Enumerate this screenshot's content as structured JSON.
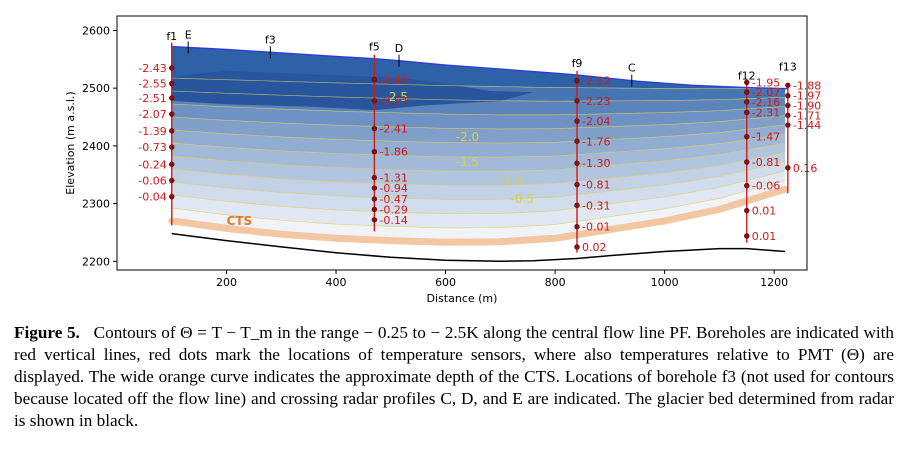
{
  "chart_data": {
    "type": "contour",
    "xlabel": "Distance (m)",
    "ylabel": "Elevation (m a.s.l.)",
    "xlim": [
      0,
      1260
    ],
    "ylim": [
      2185,
      2625
    ],
    "xticks": [
      200,
      400,
      600,
      800,
      1000,
      1200
    ],
    "yticks": [
      2200,
      2300,
      2400,
      2500,
      2600
    ],
    "surface": [
      [
        100,
        2572
      ],
      [
        200,
        2567
      ],
      [
        300,
        2561
      ],
      [
        400,
        2555
      ],
      [
        470,
        2551
      ],
      [
        520,
        2547
      ],
      [
        600,
        2540
      ],
      [
        700,
        2533
      ],
      [
        800,
        2526
      ],
      [
        840,
        2523
      ],
      [
        950,
        2512
      ],
      [
        1050,
        2505
      ],
      [
        1150,
        2501
      ],
      [
        1225,
        2499
      ]
    ],
    "bed": [
      [
        100,
        2248
      ],
      [
        200,
        2236
      ],
      [
        300,
        2225
      ],
      [
        400,
        2215
      ],
      [
        500,
        2207
      ],
      [
        600,
        2202
      ],
      [
        700,
        2200
      ],
      [
        760,
        2201
      ],
      [
        840,
        2205
      ],
      [
        900,
        2210
      ],
      [
        1000,
        2217
      ],
      [
        1100,
        2222
      ],
      [
        1150,
        2222
      ],
      [
        1220,
        2217
      ]
    ],
    "cts": [
      [
        100,
        2270
      ],
      [
        200,
        2257
      ],
      [
        300,
        2247
      ],
      [
        400,
        2240
      ],
      [
        500,
        2236
      ],
      [
        600,
        2233
      ],
      [
        700,
        2234
      ],
      [
        800,
        2240
      ],
      [
        900,
        2255
      ],
      [
        1000,
        2270
      ],
      [
        1100,
        2290
      ],
      [
        1220,
        2325
      ]
    ],
    "ice_top": [
      [
        100,
        2540
      ],
      [
        300,
        2536
      ],
      [
        470,
        2532
      ],
      [
        700,
        2527
      ],
      [
        840,
        2524
      ],
      [
        1100,
        2518
      ],
      [
        1225,
        2516
      ]
    ],
    "contour_labels": [
      {
        "value": "-2.5",
        "x": 510,
        "y": 2485
      },
      {
        "value": "-2.0",
        "x": 640,
        "y": 2415
      },
      {
        "value": "-1.5",
        "x": 640,
        "y": 2372
      },
      {
        "value": "-1.0",
        "x": 720,
        "y": 2340
      },
      {
        "value": "-0.5",
        "x": 740,
        "y": 2308
      }
    ],
    "cts_label": "CTS",
    "boreholes": [
      {
        "name": "f1",
        "x": 100,
        "top": 2572,
        "bottom": 2262,
        "sensors": [
          {
            "y": 2535,
            "t": "-2.43"
          },
          {
            "y": 2508,
            "t": "-2.55"
          },
          {
            "y": 2483,
            "t": "-2.51"
          },
          {
            "y": 2455,
            "t": "-2.07"
          },
          {
            "y": 2426,
            "t": "-1.39"
          },
          {
            "y": 2398,
            "t": "-0.73"
          },
          {
            "y": 2368,
            "t": "-0.24"
          },
          {
            "y": 2340,
            "t": "-0.06"
          },
          {
            "y": 2312,
            "t": "-0.04"
          }
        ]
      },
      {
        "name": "f5",
        "x": 470,
        "top": 2551,
        "bottom": 2252,
        "sensors": [
          {
            "y": 2515,
            "t": "-2.43"
          },
          {
            "y": 2478,
            "t": "-2.57"
          },
          {
            "y": 2430,
            "t": "-2.41"
          },
          {
            "y": 2390,
            "t": "-1.86"
          },
          {
            "y": 2345,
            "t": "-1.31"
          },
          {
            "y": 2327,
            "t": "-0.94"
          },
          {
            "y": 2308,
            "t": "-0.47"
          },
          {
            "y": 2290,
            "t": "-0.29"
          },
          {
            "y": 2272,
            "t": "-0.14"
          }
        ]
      },
      {
        "name": "f9",
        "x": 840,
        "top": 2523,
        "bottom": 2215,
        "sensors": [
          {
            "y": 2513,
            "t": "-2.12"
          },
          {
            "y": 2478,
            "t": "-2.23"
          },
          {
            "y": 2443,
            "t": "-2.04"
          },
          {
            "y": 2408,
            "t": "-1.76"
          },
          {
            "y": 2370,
            "t": "-1.30"
          },
          {
            "y": 2333,
            "t": "-0.81"
          },
          {
            "y": 2297,
            "t": "-0.31"
          },
          {
            "y": 2260,
            "t": "-0.01"
          },
          {
            "y": 2225,
            "t": "0.02"
          }
        ]
      },
      {
        "name": "f12",
        "x": 1150,
        "top": 2501,
        "bottom": 2232,
        "sensors": [
          {
            "y": 2510,
            "t": "-1.95"
          },
          {
            "y": 2493,
            "t": "-2.07"
          },
          {
            "y": 2476,
            "t": "-2.16"
          },
          {
            "y": 2458,
            "t": "-2.31"
          },
          {
            "y": 2416,
            "t": "-1.47"
          },
          {
            "y": 2372,
            "t": "-0.81"
          },
          {
            "y": 2331,
            "t": "-0.06"
          },
          {
            "y": 2288,
            "t": "0.01"
          },
          {
            "y": 2244,
            "t": "0.01"
          }
        ]
      },
      {
        "name": "f13",
        "x": 1225,
        "top": 2499,
        "bottom": 2318,
        "sensors": [
          {
            "y": 2505,
            "t": "-1.88"
          },
          {
            "y": 2487,
            "t": "-1.97"
          },
          {
            "y": 2470,
            "t": "-1.90"
          },
          {
            "y": 2453,
            "t": "-1.71"
          },
          {
            "y": 2436,
            "t": "-1.44"
          },
          {
            "y": 2362,
            "t": "0.16"
          }
        ]
      }
    ],
    "profiles": [
      {
        "name": "E",
        "x": 130
      },
      {
        "name": "f3",
        "x": 280
      },
      {
        "name": "D",
        "x": 515
      },
      {
        "name": "C",
        "x": 940
      }
    ],
    "colors": {
      "surface": "#2b3fd6",
      "bed": "#000000",
      "cts": "#f3c7a2",
      "borehole": "#d11a1a",
      "contour_line": "#d8cf5a",
      "ice_deep": "#2d62a8",
      "ice_shallow": "#ffffff"
    }
  },
  "caption": {
    "label": "Figure 5.",
    "text": "Contours of Θ = T − T_m in the range − 0.25 to − 2.5K along the central flow line PF. Boreholes are indicated with red vertical lines, red dots mark the locations of temperature sensors, where also temperatures relative to PMT (Θ) are displayed. The wide orange curve indicates the approximate depth of the CTS. Locations of borehole f3 (not used for contours because located off the flow line) and crossing radar profiles C, D, and E are indicated. The glacier bed determined from radar is shown in black."
  }
}
